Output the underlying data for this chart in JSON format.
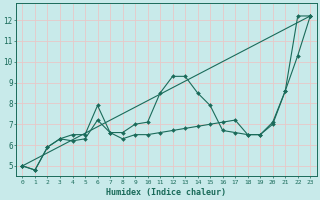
{
  "background_color": "#c8eaea",
  "grid_color": "#e8c8c8",
  "line_color": "#1a6b5a",
  "xlabel": "Humidex (Indice chaleur)",
  "ylim": [
    4.5,
    12.8
  ],
  "xlim": [
    -0.5,
    23.5
  ],
  "yticks": [
    5,
    6,
    7,
    8,
    9,
    10,
    11,
    12
  ],
  "xticks": [
    0,
    1,
    2,
    3,
    4,
    5,
    6,
    7,
    8,
    9,
    10,
    11,
    12,
    13,
    14,
    15,
    16,
    17,
    18,
    19,
    20,
    21,
    22,
    23
  ],
  "series1_x": [
    0,
    1,
    2,
    3,
    4,
    5,
    6,
    7,
    8,
    9,
    10,
    11,
    12,
    13,
    14,
    15,
    16,
    17,
    18,
    19,
    20,
    21,
    22,
    23
  ],
  "series1_y": [
    5.0,
    4.8,
    5.9,
    6.3,
    6.5,
    6.5,
    7.9,
    6.6,
    6.6,
    7.0,
    7.1,
    8.5,
    9.3,
    9.3,
    8.5,
    7.9,
    6.7,
    6.6,
    6.5,
    6.5,
    7.0,
    8.6,
    10.3,
    12.2
  ],
  "series2_x": [
    0,
    1,
    2,
    3,
    4,
    5,
    6,
    7,
    8,
    9,
    10,
    11,
    12,
    13,
    14,
    15,
    16,
    17,
    18,
    19,
    20,
    21,
    22,
    23
  ],
  "series2_y": [
    5.0,
    4.8,
    5.9,
    6.3,
    6.2,
    6.3,
    7.2,
    6.6,
    6.3,
    6.5,
    6.5,
    6.6,
    6.7,
    6.8,
    6.9,
    7.0,
    7.1,
    7.2,
    6.5,
    6.5,
    7.1,
    8.6,
    12.2,
    12.2
  ],
  "series3_x": [
    0,
    23
  ],
  "series3_y": [
    5.0,
    12.2
  ]
}
